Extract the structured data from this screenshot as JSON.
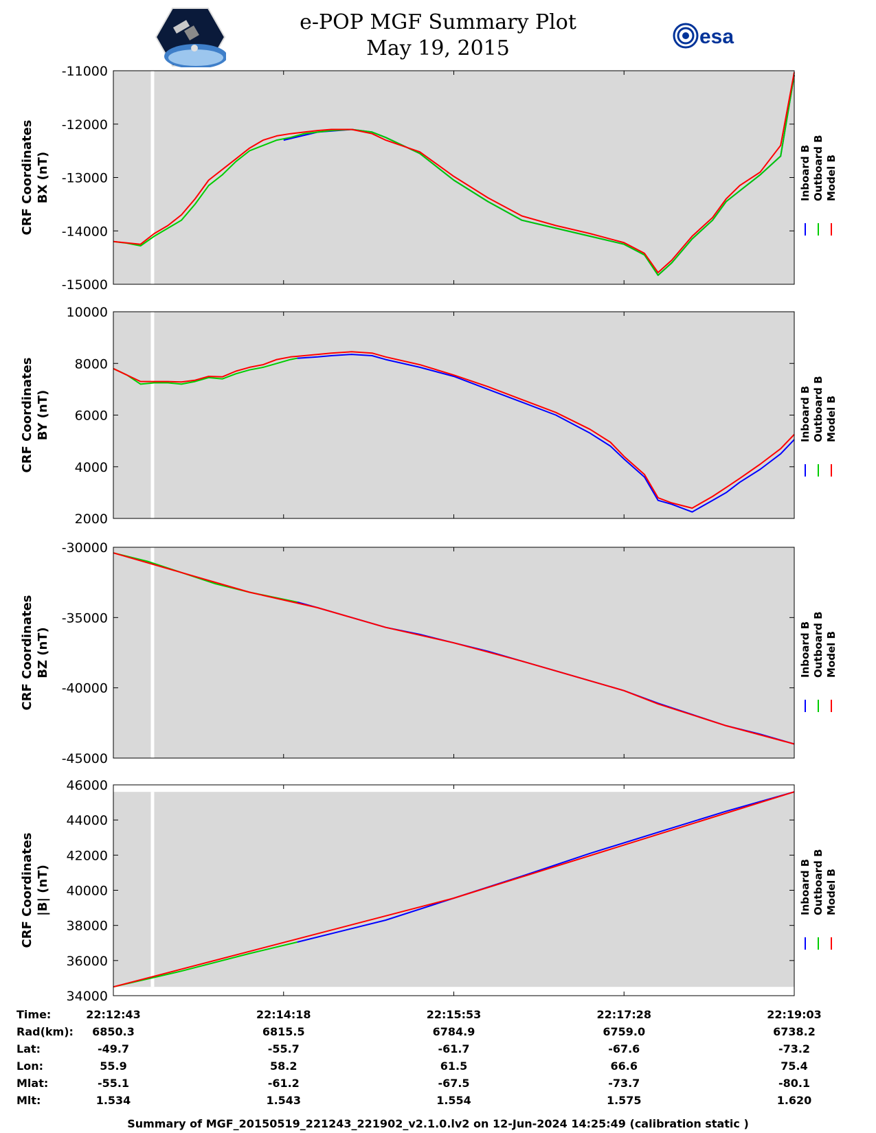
{
  "header": {
    "title_line1": "e-POP MGF Summary Plot",
    "title_line2": "May 19, 2015",
    "left_logo": "cassiope-mission-logo",
    "right_logo_text": "esa"
  },
  "colors": {
    "inboard": "#0000ff",
    "outboard": "#00cc00",
    "model": "#ff0000",
    "plot_bg": "#d9d9d9",
    "gap": "#ffffff"
  },
  "legend": [
    "Inboard B",
    "Outboard B",
    "Model B"
  ],
  "chart_data": [
    {
      "type": "line",
      "id": "bx",
      "ylabel_line1": "CRF Coordinates",
      "ylabel_line2": "BX (nT)",
      "ylim": [
        -15000,
        -11000
      ],
      "yticks": [
        "-11000",
        "-12000",
        "-13000",
        "-14000",
        "-15000"
      ],
      "ytick_values": [
        -11000,
        -12000,
        -13000,
        -14000,
        -15000
      ],
      "data_gap": [
        0.055,
        0.06
      ],
      "series": [
        {
          "name": "Inboard B",
          "x": [
            0.25,
            0.3,
            0.35,
            0.38,
            0.4,
            0.45,
            0.5,
            0.55,
            0.6,
            0.65,
            0.7,
            0.75,
            0.78,
            0.8,
            0.82,
            0.85,
            0.88,
            0.9,
            0.92,
            0.95,
            0.98,
            1.0
          ],
          "values": [
            -12300,
            -12150,
            -12100,
            -12150,
            -12250,
            -12550,
            -13050,
            -13450,
            -13800,
            -13950,
            -14100,
            -14250,
            -14450,
            -14830,
            -14600,
            -14150,
            -13800,
            -13450,
            -13250,
            -12950,
            -12600,
            -11080
          ]
        },
        {
          "name": "Outboard B",
          "x": [
            0.0,
            0.02,
            0.04,
            0.06,
            0.08,
            0.1,
            0.12,
            0.14,
            0.16,
            0.18,
            0.2,
            0.22,
            0.24,
            0.26,
            0.28,
            0.3,
            0.32,
            0.35,
            0.38,
            0.4,
            0.45,
            0.5,
            0.55,
            0.6,
            0.65,
            0.7,
            0.75,
            0.78,
            0.8,
            0.82,
            0.85,
            0.88,
            0.9,
            0.92,
            0.95,
            0.98,
            1.0
          ],
          "values": [
            -14200,
            -14230,
            -14280,
            -14100,
            -13950,
            -13800,
            -13500,
            -13150,
            -12950,
            -12700,
            -12500,
            -12400,
            -12300,
            -12250,
            -12180,
            -12150,
            -12120,
            -12100,
            -12150,
            -12250,
            -12550,
            -13050,
            -13450,
            -13800,
            -13950,
            -14100,
            -14250,
            -14450,
            -14830,
            -14600,
            -14150,
            -13800,
            -13450,
            -13250,
            -12950,
            -12600,
            -11080
          ]
        },
        {
          "name": "Model B",
          "x": [
            0.0,
            0.04,
            0.06,
            0.08,
            0.1,
            0.12,
            0.14,
            0.16,
            0.18,
            0.2,
            0.22,
            0.24,
            0.26,
            0.28,
            0.3,
            0.32,
            0.35,
            0.38,
            0.4,
            0.45,
            0.5,
            0.55,
            0.6,
            0.65,
            0.7,
            0.75,
            0.78,
            0.8,
            0.82,
            0.85,
            0.88,
            0.9,
            0.92,
            0.95,
            0.98,
            1.0
          ],
          "values": [
            -14200,
            -14250,
            -14050,
            -13900,
            -13700,
            -13400,
            -13050,
            -12850,
            -12650,
            -12450,
            -12300,
            -12220,
            -12180,
            -12150,
            -12120,
            -12100,
            -12100,
            -12180,
            -12300,
            -12520,
            -12980,
            -13380,
            -13720,
            -13900,
            -14050,
            -14220,
            -14420,
            -14780,
            -14550,
            -14100,
            -13750,
            -13400,
            -13150,
            -12900,
            -12400,
            -11030
          ]
        }
      ]
    },
    {
      "type": "line",
      "id": "by",
      "ylabel_line1": "CRF Coordinates",
      "ylabel_line2": "BY (nT)",
      "ylim": [
        2000,
        10000
      ],
      "yticks": [
        "10000",
        "8000",
        "6000",
        "4000",
        "2000"
      ],
      "ytick_values": [
        10000,
        8000,
        6000,
        4000,
        2000
      ],
      "data_gap": [
        0.055,
        0.06
      ],
      "series": [
        {
          "name": "Inboard B",
          "x": [
            0.27,
            0.3,
            0.32,
            0.35,
            0.38,
            0.4,
            0.45,
            0.5,
            0.55,
            0.6,
            0.65,
            0.7,
            0.73,
            0.75,
            0.78,
            0.8,
            0.82,
            0.85,
            0.88,
            0.9,
            0.92,
            0.95,
            0.98,
            1.0
          ],
          "values": [
            8200,
            8250,
            8300,
            8350,
            8300,
            8150,
            7850,
            7500,
            7000,
            6500,
            6000,
            5300,
            4800,
            4300,
            3600,
            2700,
            2550,
            2250,
            2700,
            3000,
            3400,
            3900,
            4500,
            5050
          ]
        },
        {
          "name": "Outboard B",
          "x": [
            0.0,
            0.02,
            0.04,
            0.06,
            0.08,
            0.1,
            0.12,
            0.14,
            0.16,
            0.18,
            0.2,
            0.22,
            0.24,
            0.26,
            0.27
          ],
          "values": [
            7800,
            7550,
            7200,
            7250,
            7250,
            7200,
            7300,
            7450,
            7400,
            7600,
            7750,
            7850,
            8000,
            8150,
            8200
          ]
        },
        {
          "name": "Model B",
          "x": [
            0.0,
            0.04,
            0.06,
            0.08,
            0.1,
            0.12,
            0.14,
            0.16,
            0.18,
            0.2,
            0.22,
            0.24,
            0.26,
            0.28,
            0.3,
            0.32,
            0.35,
            0.38,
            0.4,
            0.45,
            0.5,
            0.55,
            0.6,
            0.65,
            0.7,
            0.73,
            0.75,
            0.78,
            0.8,
            0.82,
            0.85,
            0.88,
            0.9,
            0.92,
            0.95,
            0.98,
            1.0
          ],
          "values": [
            7800,
            7300,
            7300,
            7300,
            7280,
            7350,
            7500,
            7480,
            7700,
            7850,
            7950,
            8150,
            8250,
            8300,
            8350,
            8400,
            8450,
            8400,
            8250,
            7950,
            7550,
            7100,
            6600,
            6100,
            5450,
            4950,
            4400,
            3700,
            2800,
            2600,
            2400,
            2850,
            3200,
            3550,
            4100,
            4700,
            5250
          ]
        }
      ]
    },
    {
      "type": "line",
      "id": "bz",
      "ylabel_line1": "CRF Coordinates",
      "ylabel_line2": "BZ (nT)",
      "ylim": [
        -45000,
        -30000
      ],
      "yticks": [
        "-30000",
        "-35000",
        "-40000",
        "-45000"
      ],
      "ytick_values": [
        -30000,
        -35000,
        -40000,
        -45000
      ],
      "data_gap": [
        0.055,
        0.06
      ],
      "series": [
        {
          "name": "Inboard B",
          "x": [
            0.27,
            0.3,
            0.35,
            0.4,
            0.45,
            0.5,
            0.55,
            0.6,
            0.65,
            0.7,
            0.75,
            0.8,
            0.85,
            0.9,
            0.95,
            1.0
          ],
          "values": [
            -33900,
            -34300,
            -35000,
            -35700,
            -36200,
            -36800,
            -37400,
            -38100,
            -38800,
            -39500,
            -40200,
            -41100,
            -41900,
            -42700,
            -43300,
            -44000
          ]
        },
        {
          "name": "Outboard B",
          "x": [
            0.0,
            0.05,
            0.1,
            0.15,
            0.2,
            0.25,
            0.27
          ],
          "values": [
            -30400,
            -31000,
            -31800,
            -32600,
            -33200,
            -33700,
            -33900
          ]
        },
        {
          "name": "Model B",
          "x": [
            0.0,
            0.1,
            0.2,
            0.3,
            0.4,
            0.5,
            0.6,
            0.7,
            0.75,
            0.8,
            0.9,
            1.0
          ],
          "values": [
            -30400,
            -31800,
            -33200,
            -34300,
            -35700,
            -36800,
            -38100,
            -39500,
            -40200,
            -41150,
            -42700,
            -44000
          ]
        }
      ]
    },
    {
      "type": "line",
      "id": "bmag",
      "ylabel_line1": "CRF Coordinates",
      "ylabel_line2": "|B| (nT)",
      "ylim": [
        34000,
        46000
      ],
      "yticks": [
        "46000",
        "44000",
        "42000",
        "40000",
        "38000",
        "36000",
        "34000"
      ],
      "ytick_values": [
        46000,
        44000,
        42000,
        40000,
        38000,
        36000,
        34000
      ],
      "data_gap": [
        0.055,
        0.06
      ],
      "plot_top": 45600,
      "plot_bottom": 34500,
      "series": [
        {
          "name": "Inboard B",
          "x": [
            0.27,
            0.4,
            0.5,
            0.6,
            0.7,
            0.8,
            0.9,
            1.0
          ],
          "values": [
            37050,
            38300,
            39550,
            40800,
            42100,
            43300,
            44500,
            45600
          ]
        },
        {
          "name": "Outboard B",
          "x": [
            0.0,
            0.1,
            0.2,
            0.27
          ],
          "values": [
            34500,
            35400,
            36400,
            37050
          ]
        },
        {
          "name": "Model B",
          "x": [
            0.0,
            0.5,
            1.0
          ],
          "values": [
            34500,
            39550,
            45600
          ]
        }
      ]
    }
  ],
  "orbit_table": {
    "row_labels": [
      "Time:",
      "Rad(km):",
      "Lat:",
      "Lon:",
      "Mlat:",
      "Mlt:"
    ],
    "columns": [
      [
        "22:12:43",
        "6850.3",
        "-49.7",
        "55.9",
        "-55.1",
        "1.534"
      ],
      [
        "22:14:18",
        "6815.5",
        "-55.7",
        "58.2",
        "-61.2",
        "1.543"
      ],
      [
        "22:15:53",
        "6784.9",
        "-61.7",
        "61.5",
        "-67.5",
        "1.554"
      ],
      [
        "22:17:28",
        "6759.0",
        "-67.6",
        "66.6",
        "-73.7",
        "1.575"
      ],
      [
        "22:19:03",
        "6738.2",
        "-73.2",
        "75.4",
        "-80.1",
        "1.620"
      ]
    ]
  },
  "footer": "Summary of MGF_20150519_221243_221902_v2.1.0.lv2 on 12-Jun-2024 14:25:49 (calibration static )"
}
